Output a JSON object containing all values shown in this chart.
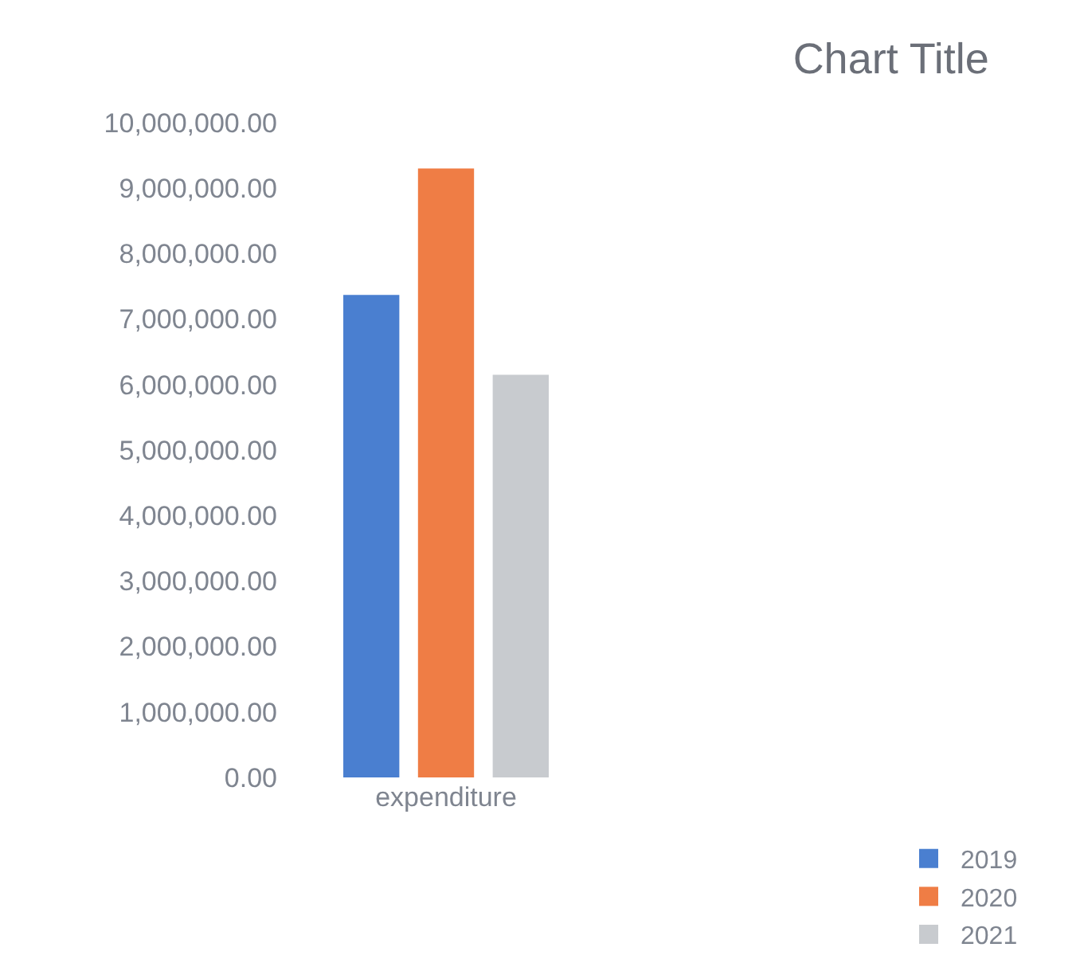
{
  "chart_data": {
    "type": "bar",
    "title": "Chart Title",
    "categories": [
      "expenditure"
    ],
    "series": [
      {
        "name": "2019",
        "color": "#4a7fd0",
        "values": [
          7370000
        ]
      },
      {
        "name": "2020",
        "color": "#ef7d45",
        "values": [
          9300000
        ]
      },
      {
        "name": "2021",
        "color": "#c8cbcf",
        "values": [
          6150000
        ]
      }
    ],
    "ylim": [
      0,
      10000000
    ],
    "yticks": [
      {
        "value": 0,
        "label": "0.00"
      },
      {
        "value": 1000000,
        "label": "1,000,000.00"
      },
      {
        "value": 2000000,
        "label": "2,000,000.00"
      },
      {
        "value": 3000000,
        "label": "3,000,000.00"
      },
      {
        "value": 4000000,
        "label": "4,000,000.00"
      },
      {
        "value": 5000000,
        "label": "5,000,000.00"
      },
      {
        "value": 6000000,
        "label": "6,000,000.00"
      },
      {
        "value": 7000000,
        "label": "7,000,000.00"
      },
      {
        "value": 8000000,
        "label": "8,000,000.00"
      },
      {
        "value": 9000000,
        "label": "9,000,000.00"
      },
      {
        "value": 10000000,
        "label": "10,000,000.00"
      }
    ],
    "legend": "bottom right"
  }
}
